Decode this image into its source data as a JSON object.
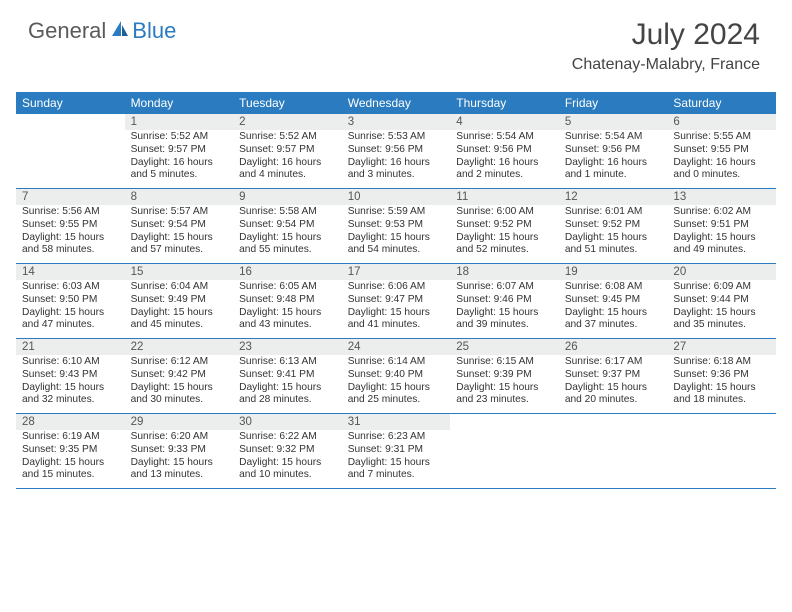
{
  "brand": {
    "part1": "General",
    "part2": "Blue"
  },
  "title": "July 2024",
  "location": "Chatenay-Malabry, France",
  "colors": {
    "header_bg": "#2a7bbf",
    "header_text": "#ffffff",
    "dayhead_bg": "#eceeee",
    "rule": "#2a7bbf",
    "body_text": "#333333",
    "logo_gray": "#5a5a5a",
    "logo_blue": "#2a7bbf"
  },
  "weekdays": [
    "Sunday",
    "Monday",
    "Tuesday",
    "Wednesday",
    "Thursday",
    "Friday",
    "Saturday"
  ],
  "weeks": [
    [
      {
        "blank": true
      },
      {
        "n": "1",
        "sr": "Sunrise: 5:52 AM",
        "ss": "Sunset: 9:57 PM",
        "d1": "Daylight: 16 hours",
        "d2": "and 5 minutes."
      },
      {
        "n": "2",
        "sr": "Sunrise: 5:52 AM",
        "ss": "Sunset: 9:57 PM",
        "d1": "Daylight: 16 hours",
        "d2": "and 4 minutes."
      },
      {
        "n": "3",
        "sr": "Sunrise: 5:53 AM",
        "ss": "Sunset: 9:56 PM",
        "d1": "Daylight: 16 hours",
        "d2": "and 3 minutes."
      },
      {
        "n": "4",
        "sr": "Sunrise: 5:54 AM",
        "ss": "Sunset: 9:56 PM",
        "d1": "Daylight: 16 hours",
        "d2": "and 2 minutes."
      },
      {
        "n": "5",
        "sr": "Sunrise: 5:54 AM",
        "ss": "Sunset: 9:56 PM",
        "d1": "Daylight: 16 hours",
        "d2": "and 1 minute."
      },
      {
        "n": "6",
        "sr": "Sunrise: 5:55 AM",
        "ss": "Sunset: 9:55 PM",
        "d1": "Daylight: 16 hours",
        "d2": "and 0 minutes."
      }
    ],
    [
      {
        "n": "7",
        "sr": "Sunrise: 5:56 AM",
        "ss": "Sunset: 9:55 PM",
        "d1": "Daylight: 15 hours",
        "d2": "and 58 minutes."
      },
      {
        "n": "8",
        "sr": "Sunrise: 5:57 AM",
        "ss": "Sunset: 9:54 PM",
        "d1": "Daylight: 15 hours",
        "d2": "and 57 minutes."
      },
      {
        "n": "9",
        "sr": "Sunrise: 5:58 AM",
        "ss": "Sunset: 9:54 PM",
        "d1": "Daylight: 15 hours",
        "d2": "and 55 minutes."
      },
      {
        "n": "10",
        "sr": "Sunrise: 5:59 AM",
        "ss": "Sunset: 9:53 PM",
        "d1": "Daylight: 15 hours",
        "d2": "and 54 minutes."
      },
      {
        "n": "11",
        "sr": "Sunrise: 6:00 AM",
        "ss": "Sunset: 9:52 PM",
        "d1": "Daylight: 15 hours",
        "d2": "and 52 minutes."
      },
      {
        "n": "12",
        "sr": "Sunrise: 6:01 AM",
        "ss": "Sunset: 9:52 PM",
        "d1": "Daylight: 15 hours",
        "d2": "and 51 minutes."
      },
      {
        "n": "13",
        "sr": "Sunrise: 6:02 AM",
        "ss": "Sunset: 9:51 PM",
        "d1": "Daylight: 15 hours",
        "d2": "and 49 minutes."
      }
    ],
    [
      {
        "n": "14",
        "sr": "Sunrise: 6:03 AM",
        "ss": "Sunset: 9:50 PM",
        "d1": "Daylight: 15 hours",
        "d2": "and 47 minutes."
      },
      {
        "n": "15",
        "sr": "Sunrise: 6:04 AM",
        "ss": "Sunset: 9:49 PM",
        "d1": "Daylight: 15 hours",
        "d2": "and 45 minutes."
      },
      {
        "n": "16",
        "sr": "Sunrise: 6:05 AM",
        "ss": "Sunset: 9:48 PM",
        "d1": "Daylight: 15 hours",
        "d2": "and 43 minutes."
      },
      {
        "n": "17",
        "sr": "Sunrise: 6:06 AM",
        "ss": "Sunset: 9:47 PM",
        "d1": "Daylight: 15 hours",
        "d2": "and 41 minutes."
      },
      {
        "n": "18",
        "sr": "Sunrise: 6:07 AM",
        "ss": "Sunset: 9:46 PM",
        "d1": "Daylight: 15 hours",
        "d2": "and 39 minutes."
      },
      {
        "n": "19",
        "sr": "Sunrise: 6:08 AM",
        "ss": "Sunset: 9:45 PM",
        "d1": "Daylight: 15 hours",
        "d2": "and 37 minutes."
      },
      {
        "n": "20",
        "sr": "Sunrise: 6:09 AM",
        "ss": "Sunset: 9:44 PM",
        "d1": "Daylight: 15 hours",
        "d2": "and 35 minutes."
      }
    ],
    [
      {
        "n": "21",
        "sr": "Sunrise: 6:10 AM",
        "ss": "Sunset: 9:43 PM",
        "d1": "Daylight: 15 hours",
        "d2": "and 32 minutes."
      },
      {
        "n": "22",
        "sr": "Sunrise: 6:12 AM",
        "ss": "Sunset: 9:42 PM",
        "d1": "Daylight: 15 hours",
        "d2": "and 30 minutes."
      },
      {
        "n": "23",
        "sr": "Sunrise: 6:13 AM",
        "ss": "Sunset: 9:41 PM",
        "d1": "Daylight: 15 hours",
        "d2": "and 28 minutes."
      },
      {
        "n": "24",
        "sr": "Sunrise: 6:14 AM",
        "ss": "Sunset: 9:40 PM",
        "d1": "Daylight: 15 hours",
        "d2": "and 25 minutes."
      },
      {
        "n": "25",
        "sr": "Sunrise: 6:15 AM",
        "ss": "Sunset: 9:39 PM",
        "d1": "Daylight: 15 hours",
        "d2": "and 23 minutes."
      },
      {
        "n": "26",
        "sr": "Sunrise: 6:17 AM",
        "ss": "Sunset: 9:37 PM",
        "d1": "Daylight: 15 hours",
        "d2": "and 20 minutes."
      },
      {
        "n": "27",
        "sr": "Sunrise: 6:18 AM",
        "ss": "Sunset: 9:36 PM",
        "d1": "Daylight: 15 hours",
        "d2": "and 18 minutes."
      }
    ],
    [
      {
        "n": "28",
        "sr": "Sunrise: 6:19 AM",
        "ss": "Sunset: 9:35 PM",
        "d1": "Daylight: 15 hours",
        "d2": "and 15 minutes."
      },
      {
        "n": "29",
        "sr": "Sunrise: 6:20 AM",
        "ss": "Sunset: 9:33 PM",
        "d1": "Daylight: 15 hours",
        "d2": "and 13 minutes."
      },
      {
        "n": "30",
        "sr": "Sunrise: 6:22 AM",
        "ss": "Sunset: 9:32 PM",
        "d1": "Daylight: 15 hours",
        "d2": "and 10 minutes."
      },
      {
        "n": "31",
        "sr": "Sunrise: 6:23 AM",
        "ss": "Sunset: 9:31 PM",
        "d1": "Daylight: 15 hours",
        "d2": "and 7 minutes."
      },
      {
        "blank": true
      },
      {
        "blank": true
      },
      {
        "blank": true
      }
    ]
  ]
}
